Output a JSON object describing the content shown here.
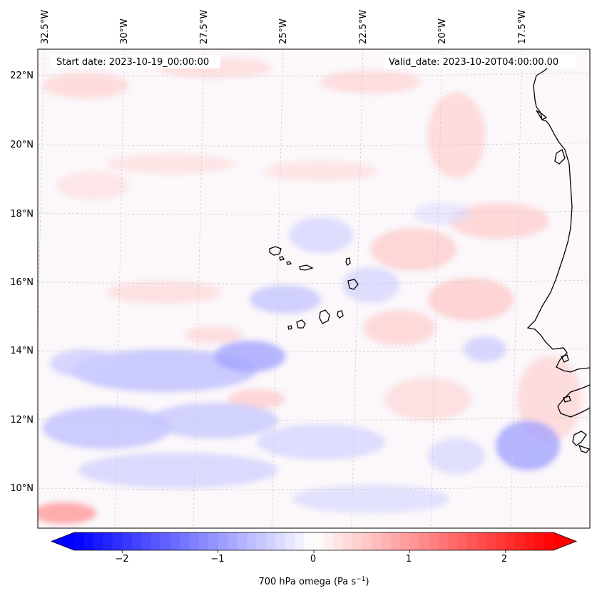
{
  "map": {
    "start_label": "Start date: 2023-10-19_00:00:00",
    "valid_label": "Valid_date: 2023-10-20T04:00:00.00",
    "lon_ticks": [
      "32.5°W",
      "30°W",
      "27.5°W",
      "25°W",
      "22.5°W",
      "20°W",
      "17.5°W"
    ],
    "lat_ticks": [
      "22°N",
      "20°N",
      "18°N",
      "16°N",
      "14°N",
      "12°N",
      "10°N"
    ],
    "lon_values": [
      -32.5,
      -30,
      -27.5,
      -25,
      -22.5,
      -20,
      -17.5
    ],
    "lat_values": [
      22,
      20,
      18,
      16,
      14,
      12,
      10
    ],
    "extent": {
      "lon_min": -33.0,
      "lon_max": -15.6,
      "lat_min": 8.9,
      "lat_max": 22.8
    }
  },
  "colorbar": {
    "label": "700 hPa omega (Pa s",
    "label_sup": "−1",
    "label_close": ")",
    "ticks": [
      "−2",
      "−1",
      "0",
      "1",
      "2"
    ],
    "tick_values": [
      -2,
      -1,
      0,
      1,
      2
    ],
    "vmin": -2.5,
    "vmax": 2.5,
    "extend": "both",
    "colors": {
      "min": "#0000ff",
      "mid": "#ffffff",
      "max": "#ff0000"
    }
  },
  "legend_icons": [
    "coastline-icon",
    "gridline-icon"
  ]
}
